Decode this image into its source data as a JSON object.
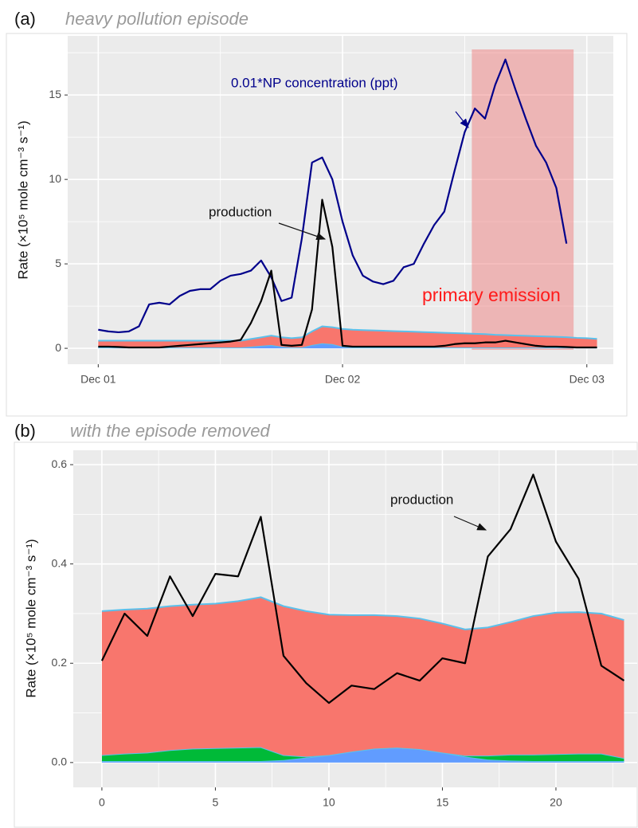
{
  "chart_data": [
    {
      "type": "line",
      "panel_label": "(a)",
      "title": "heavy pollution episode",
      "y_label": "Rate (×10⁵ mole cm⁻³ s⁻¹)",
      "x": [
        0,
        1,
        2,
        3,
        4,
        5,
        6,
        7,
        8,
        9,
        10,
        11,
        12,
        13,
        14,
        15,
        16,
        17,
        18,
        19,
        20,
        21,
        22,
        23,
        24,
        25,
        26,
        27,
        28,
        29,
        30,
        31,
        32,
        33,
        34,
        35,
        36,
        37,
        38,
        39,
        40,
        41,
        42,
        43,
        44,
        45,
        46,
        47,
        48,
        49
      ],
      "series": [
        {
          "kind": "area",
          "color": "#619cff",
          "values": [
            0.05,
            0.05,
            0.05,
            0.05,
            0.05,
            0.05,
            0.05,
            0.05,
            0.05,
            0.05,
            0.05,
            0.05,
            0.05,
            0.05,
            0.05,
            0.1,
            0.15,
            0.2,
            0.1,
            0.05,
            0.05,
            0.2,
            0.3,
            0.25,
            0.1,
            0.05,
            0.05,
            0.05,
            0.05,
            0.05,
            0.05,
            0.05,
            0.05,
            0.05,
            0.05,
            0.05,
            0.05,
            0.05,
            0.05,
            0.05,
            0.05,
            0.05,
            0.05,
            0.05,
            0.05,
            0.05,
            0.05,
            0.05,
            0.05,
            0.05
          ]
        },
        {
          "kind": "area",
          "color": "#f8766d",
          "values": [
            0.4,
            0.4,
            0.4,
            0.4,
            0.4,
            0.4,
            0.4,
            0.4,
            0.4,
            0.4,
            0.4,
            0.4,
            0.4,
            0.4,
            0.4,
            0.45,
            0.5,
            0.55,
            0.55,
            0.55,
            0.6,
            0.8,
            1.0,
            1.0,
            1.05,
            1.05,
            1.03,
            1.01,
            0.99,
            0.97,
            0.95,
            0.93,
            0.91,
            0.89,
            0.87,
            0.85,
            0.83,
            0.81,
            0.79,
            0.75,
            0.73,
            0.71,
            0.69,
            0.67,
            0.65,
            0.63,
            0.61,
            0.57,
            0.55,
            0.51
          ]
        },
        {
          "kind": "line",
          "color": "#00008b",
          "values": [
            1.1,
            1.0,
            0.95,
            1.0,
            1.3,
            2.6,
            2.7,
            2.6,
            3.1,
            3.4,
            3.5,
            3.5,
            4.0,
            4.3,
            4.4,
            4.6,
            5.2,
            4.2,
            2.8,
            3.0,
            6.5,
            11.0,
            11.3,
            10.0,
            7.5,
            5.5,
            4.3,
            3.95,
            3.8,
            4.0,
            4.8,
            5.0,
            6.2,
            7.3,
            8.1,
            10.5,
            12.8,
            14.2,
            13.6,
            15.6,
            17.1,
            15.3,
            13.6,
            12.0,
            11.0,
            9.5,
            6.2,
            null,
            null,
            null
          ]
        },
        {
          "kind": "line",
          "color": "#000000",
          "values": [
            0.1,
            0.1,
            0.08,
            0.05,
            0.05,
            0.05,
            0.05,
            0.1,
            0.15,
            0.2,
            0.25,
            0.3,
            0.35,
            0.4,
            0.5,
            1.5,
            2.8,
            4.6,
            0.2,
            0.15,
            0.2,
            2.3,
            8.8,
            6.0,
            0.15,
            0.1,
            0.1,
            0.1,
            0.1,
            0.1,
            0.1,
            0.1,
            0.1,
            0.1,
            0.15,
            0.25,
            0.3,
            0.3,
            0.35,
            0.35,
            0.45,
            0.35,
            0.25,
            0.15,
            0.1,
            0.1,
            0.08,
            0.05,
            0.05,
            0.05
          ]
        }
      ],
      "outline_color": "#5bc0eb",
      "shaded_region": [
        36.7,
        46.7
      ],
      "shaded_color": "#f08080",
      "annotations": [
        "0.01*NP concentration (ppt)",
        "production",
        "primary emission"
      ],
      "xlim": [
        -3,
        50.6
      ],
      "xticks": [
        {
          "value": 0,
          "label": "Dec 01"
        },
        {
          "value": 24,
          "label": "Dec 02"
        },
        {
          "value": 48,
          "label": "Dec 03"
        }
      ],
      "ylim": [
        -0.94,
        18.5
      ],
      "yticks": [
        0,
        5,
        10,
        15
      ],
      "grid": true,
      "minor_grid": true
    },
    {
      "type": "line",
      "panel_label": "(b)",
      "title": "with the episode removed",
      "y_label": "Rate (×10⁵ mole cm⁻³ s⁻¹)",
      "x": [
        0,
        1,
        2,
        3,
        4,
        5,
        6,
        7,
        8,
        9,
        10,
        11,
        12,
        13,
        14,
        15,
        16,
        17,
        18,
        19,
        20,
        21,
        22,
        23
      ],
      "series": [
        {
          "kind": "area",
          "color": "#619cff",
          "values": [
            0.003,
            0.003,
            0.003,
            0.003,
            0.003,
            0.003,
            0.003,
            0.003,
            0.005,
            0.01,
            0.015,
            0.022,
            0.028,
            0.03,
            0.027,
            0.02,
            0.012,
            0.006,
            0.004,
            0.003,
            0.003,
            0.003,
            0.003,
            0.003
          ]
        },
        {
          "kind": "area",
          "color": "#00ba38",
          "values": [
            0.012,
            0.015,
            0.017,
            0.022,
            0.025,
            0.026,
            0.027,
            0.028,
            0.01,
            0.002,
            0,
            0,
            0,
            0,
            0,
            0,
            0.002,
            0.008,
            0.012,
            0.013,
            0.014,
            0.015,
            0.015,
            0.006
          ]
        },
        {
          "kind": "area",
          "color": "#f8766d",
          "values": [
            0.29,
            0.29,
            0.29,
            0.29,
            0.29,
            0.291,
            0.295,
            0.302,
            0.3,
            0.293,
            0.283,
            0.275,
            0.269,
            0.265,
            0.263,
            0.26,
            0.254,
            0.258,
            0.267,
            0.279,
            0.285,
            0.285,
            0.282,
            0.278
          ]
        },
        {
          "kind": "line",
          "color": "#000000",
          "values": [
            0.205,
            0.3,
            0.255,
            0.375,
            0.295,
            0.38,
            0.375,
            0.495,
            0.215,
            0.16,
            0.12,
            0.155,
            0.148,
            0.18,
            0.165,
            0.21,
            0.2,
            0.415,
            0.47,
            0.58,
            0.445,
            0.37,
            0.195,
            0.165
          ]
        }
      ],
      "outline_color": "#5bc0eb",
      "annotations": [
        "production"
      ],
      "xlim": [
        -1.26,
        23.58
      ],
      "xticks": [
        0,
        5,
        10,
        15,
        20
      ],
      "ylim": [
        -0.05,
        0.629
      ],
      "yticks": [
        {
          "value": 0,
          "label": "0.0"
        },
        0.2,
        0.4,
        0.6
      ],
      "grid": true,
      "minor_grid": true
    }
  ]
}
